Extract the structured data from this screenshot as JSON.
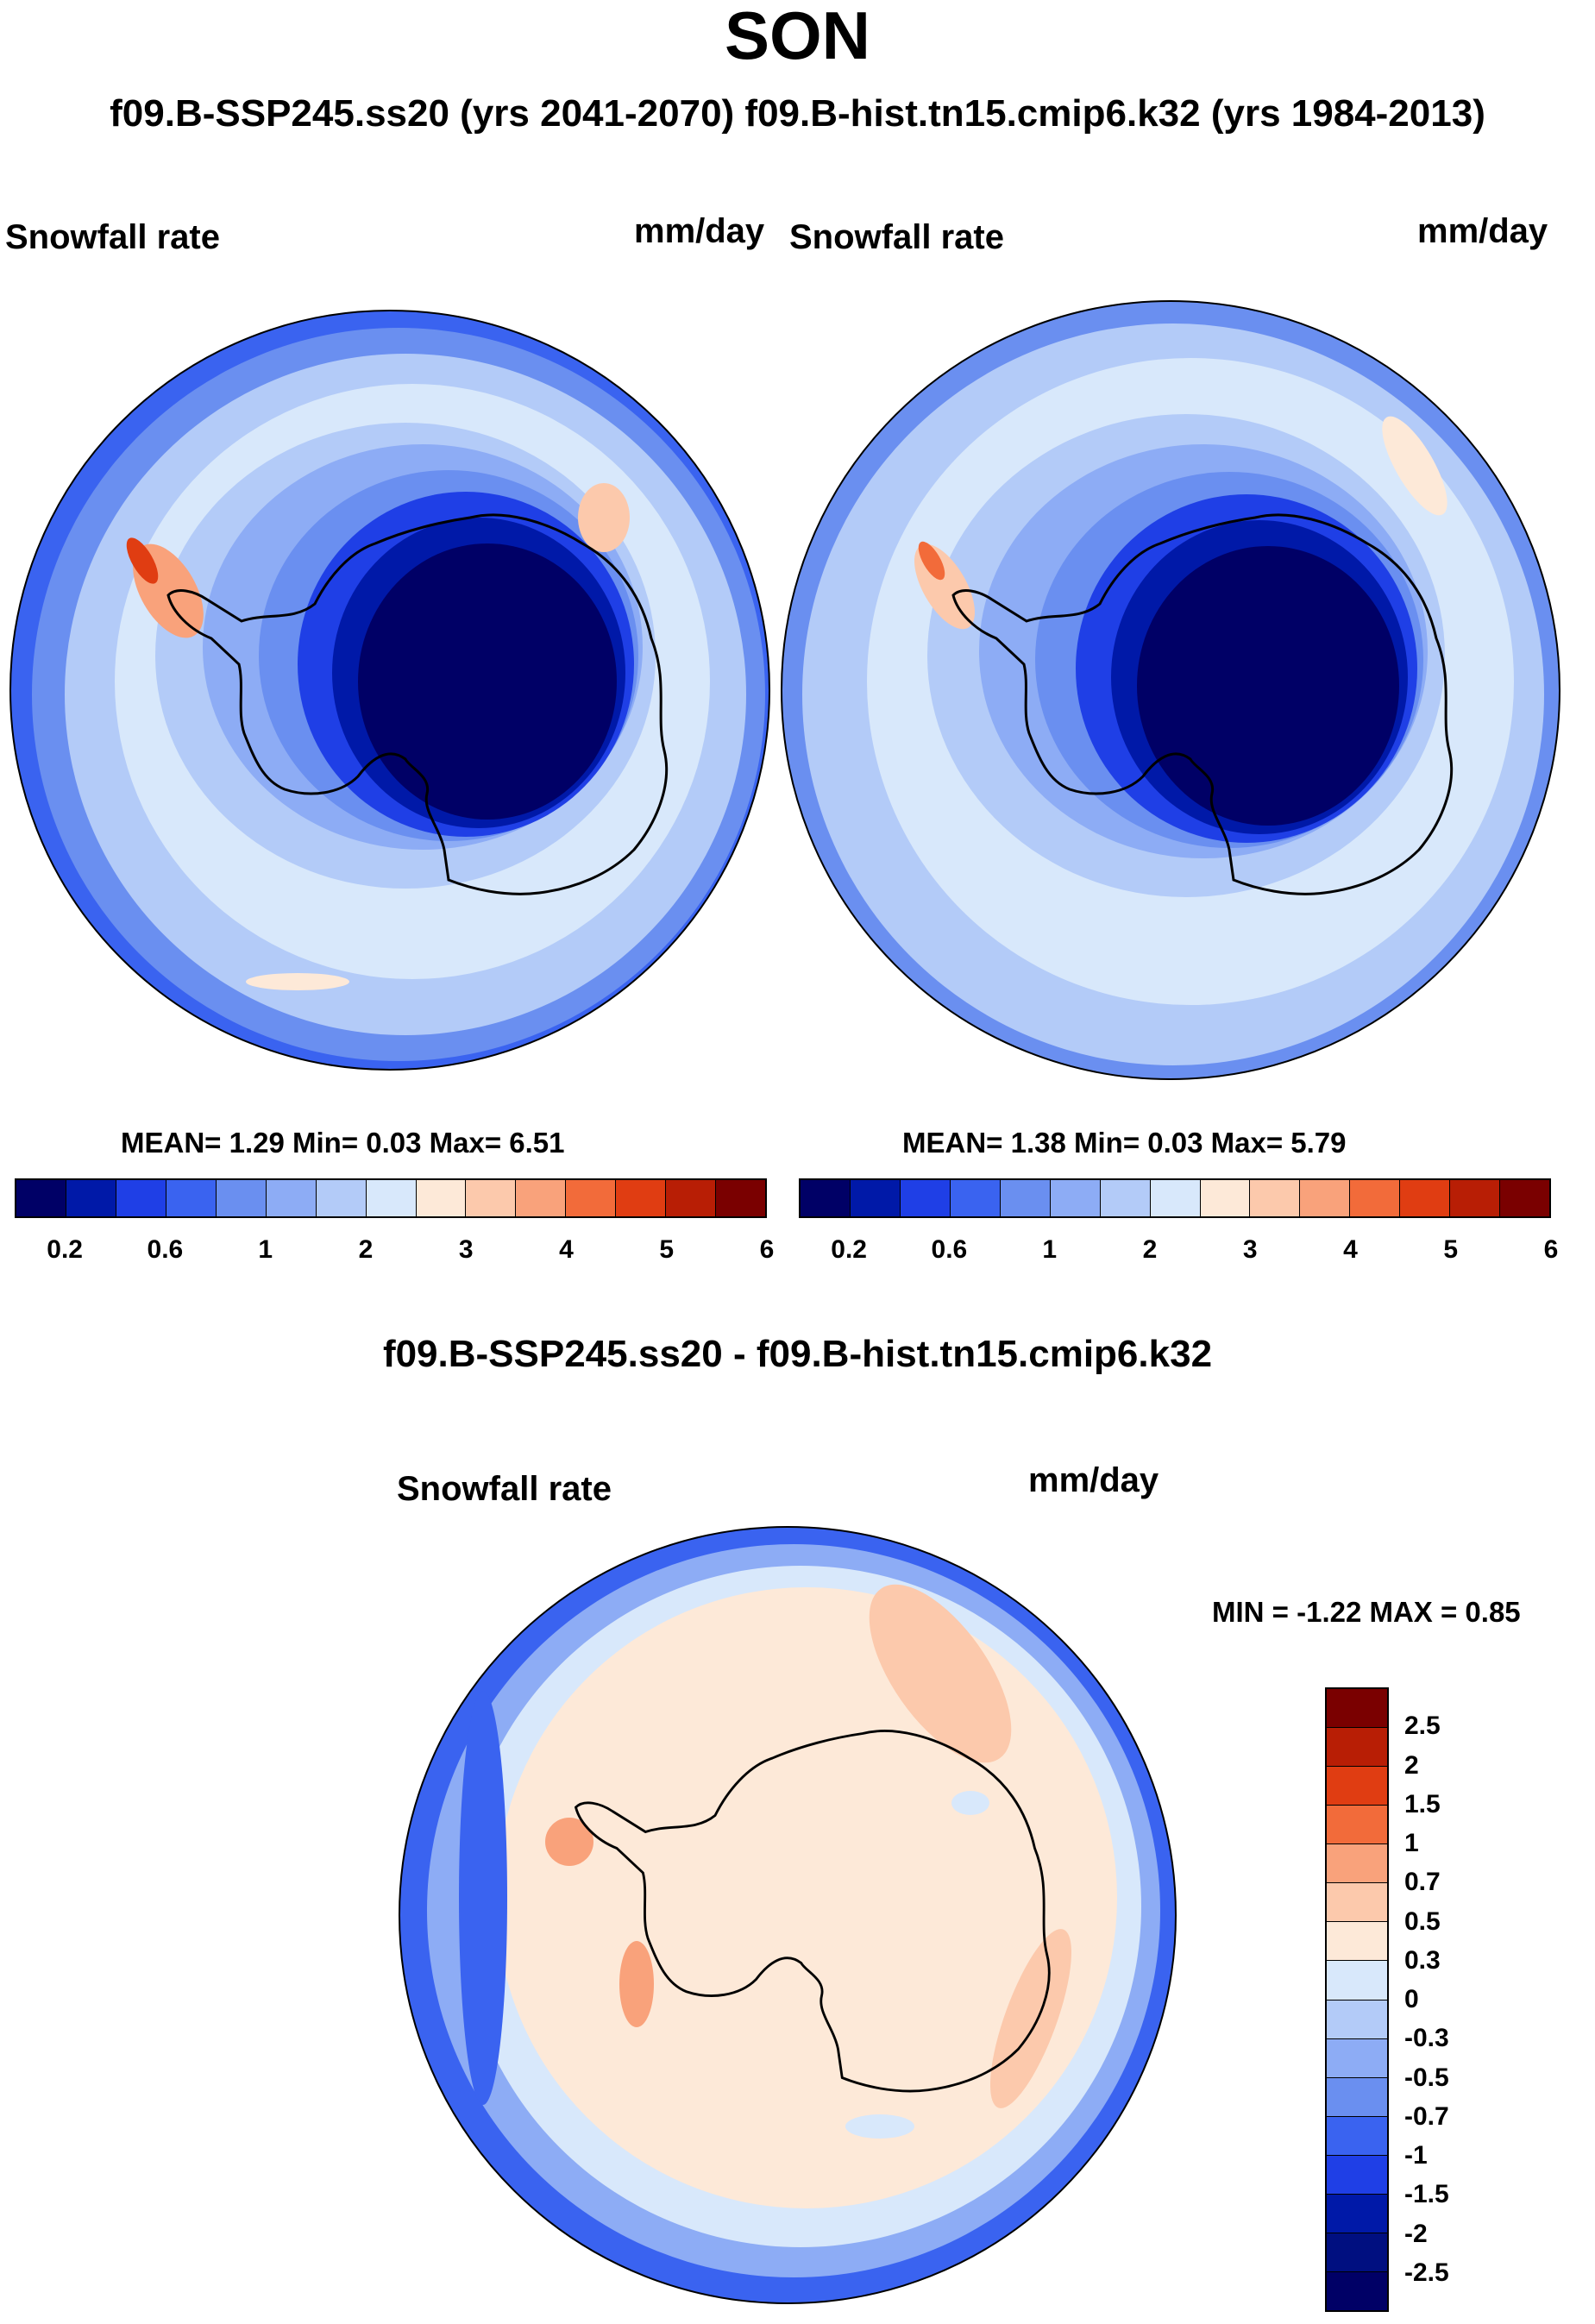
{
  "title": "SON",
  "subtitle": "f09.B-SSP245.ss20 (yrs 2041-2070)  f09.B-hist.tn15.cmip6.k32 (yrs 1984-2013)",
  "colors": {
    "abs": [
      "#000066",
      "#0019a8",
      "#1f3fe6",
      "#3a63f0",
      "#6a8ff0",
      "#8dacf5",
      "#b3cbf8",
      "#d8e8fb",
      "#fde9d8",
      "#fcc9ac",
      "#f9a27b",
      "#f26b3a",
      "#e03d12",
      "#b81e05",
      "#7a0000"
    ],
    "diff": [
      "#7a0000",
      "#b81e05",
      "#e03d12",
      "#f26b3a",
      "#f9a27b",
      "#fcc9ac",
      "#fde9d8",
      "#d8e8fb",
      "#b3cbf8",
      "#8dacf5",
      "#6a8ff0",
      "#3a63f0",
      "#1f3fe6",
      "#0019a8",
      "#000066"
    ]
  },
  "panel_left": {
    "variable": "Snowfall rate",
    "units": "mm/day",
    "stats": "MEAN=   1.29  Min=   0.03  Max=   6.51"
  },
  "panel_right": {
    "variable": "Snowfall rate",
    "units": "mm/day",
    "stats": "MEAN=   1.38  Min=   0.03  Max=   5.79"
  },
  "abs_ticks": [
    "0.2",
    "0.6",
    "1",
    "2",
    "3",
    "4",
    "5",
    "6"
  ],
  "diff_panel": {
    "title": "f09.B-SSP245.ss20 - f09.B-hist.tn15.cmip6.k32",
    "variable": "Snowfall rate",
    "units": "mm/day",
    "stats": "MIN =  -1.22 MAX =   0.85",
    "ticks": [
      "2.5",
      "2",
      "1.5",
      "1",
      "0.7",
      "0.5",
      "0.3",
      "0",
      "-0.3",
      "-0.5",
      "-0.7",
      "-1",
      "-1.5",
      "-2",
      "-2.5"
    ]
  }
}
